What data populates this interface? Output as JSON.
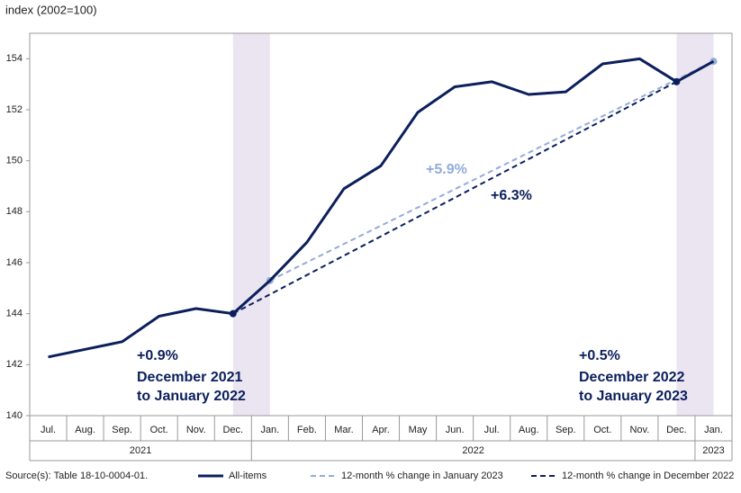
{
  "chart_data": {
    "type": "line",
    "y_axis_label": "index (2002=100)",
    "categories": [
      "Jul.",
      "Aug.",
      "Sep.",
      "Oct.",
      "Nov.",
      "Dec.",
      "Jan.",
      "Feb.",
      "Mar.",
      "Apr.",
      "May",
      "Jun.",
      "Jul.",
      "Aug.",
      "Sep.",
      "Oct.",
      "Nov.",
      "Dec.",
      "Jan."
    ],
    "year_labels": [
      "2021",
      "2022",
      "2023"
    ],
    "series": [
      {
        "name": "All-items",
        "color": "#0b1f5c",
        "dashed": false,
        "values": [
          142.3,
          142.6,
          142.9,
          143.9,
          144.2,
          144.0,
          145.3,
          146.8,
          148.9,
          149.8,
          151.9,
          152.9,
          153.1,
          152.6,
          152.7,
          153.8,
          154.0,
          153.1,
          153.9
        ]
      },
      {
        "name": "12-month % change in January 2023",
        "color": "#93acd9",
        "dashed": true,
        "values": [
          null,
          null,
          null,
          null,
          null,
          null,
          145.3,
          null,
          null,
          null,
          null,
          null,
          null,
          null,
          null,
          null,
          null,
          null,
          153.9
        ]
      },
      {
        "name": "12-month % change in December 2022",
        "color": "#0b1f5c",
        "dashed": true,
        "values": [
          null,
          null,
          null,
          null,
          null,
          144.0,
          null,
          null,
          null,
          null,
          null,
          null,
          null,
          null,
          null,
          null,
          null,
          153.1,
          null
        ]
      }
    ],
    "annotations": [
      "+0.9%",
      "December 2021",
      "to January 2022",
      "+0.5%",
      "December 2022",
      "to January 2023",
      "+5.9%",
      "+6.3%"
    ],
    "source": "Source(s): Table 18-10-0004-01.",
    "ylim": [
      140,
      155
    ],
    "yticks": [
      140,
      142,
      144,
      146,
      148,
      150,
      152,
      154
    ],
    "highlight_color": "#ebe5f2"
  }
}
